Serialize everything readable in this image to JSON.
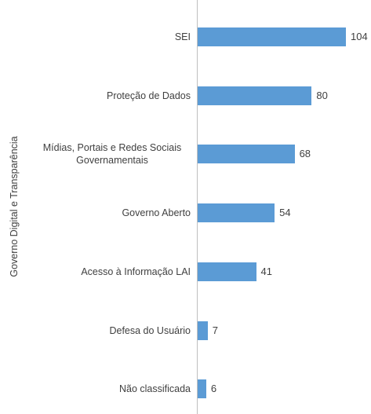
{
  "chart_data": {
    "type": "bar",
    "orientation": "horizontal",
    "y_label": "Governo Digital e Transparência",
    "categories": [
      "SEI",
      "Proteção de Dados",
      "Mídias, Portais e Redes Sociais Governamentais",
      "Governo Aberto",
      "Acesso à Informação LAI",
      "Defesa do Usuário",
      "Não classificada"
    ],
    "values": [
      104,
      80,
      68,
      54,
      41,
      7,
      6
    ],
    "color": "#5b9bd5"
  }
}
